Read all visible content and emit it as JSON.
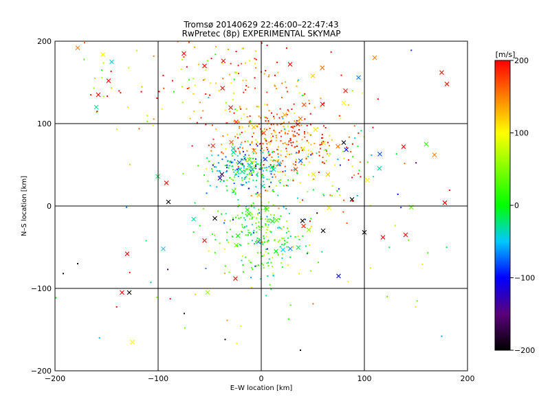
{
  "chart_data": {
    "type": "scatter",
    "title": "Tromsø 20140629 22:46:00–22:47:43",
    "subtitle": "RwPretec (8p) EXPERIMENTAL SKYMAP",
    "xlabel": "E–W location [km]",
    "ylabel": "N–S location [km]",
    "xlim": [
      -200,
      200
    ],
    "ylim": [
      -200,
      200
    ],
    "xticks": [
      -200,
      -100,
      0,
      100,
      200
    ],
    "yticks": [
      -200,
      -100,
      0,
      100,
      200
    ],
    "xtick_labels": [
      "−200",
      "−100",
      "0",
      "100",
      "200"
    ],
    "ytick_labels": [
      "−200",
      "−100",
      "0",
      "100",
      "200"
    ],
    "grid": true,
    "colorbar": {
      "label": "[m/s]",
      "range": [
        -200,
        200
      ],
      "ticks": [
        -200,
        -100,
        0,
        100,
        200
      ],
      "tick_labels": [
        "−200",
        "−100",
        "0",
        "100",
        "200"
      ]
    },
    "markers": {
      "small": "dot",
      "large": "x"
    },
    "clusters": [
      {
        "cx": 20,
        "cy": 80,
        "sx": 30,
        "sy": 25,
        "n": 300,
        "vmean": 160,
        "vsd": 45
      },
      {
        "cx": -15,
        "cy": 45,
        "sx": 18,
        "sy": 12,
        "n": 200,
        "vmean": -40,
        "vsd": 45
      },
      {
        "cx": 0,
        "cy": -30,
        "sx": 22,
        "sy": 28,
        "n": 250,
        "vmean": 15,
        "vsd": 45
      },
      {
        "cx": -90,
        "cy": 150,
        "sx": 60,
        "sy": 35,
        "n": 70,
        "vmean": 140,
        "vsd": 70
      },
      {
        "cx": 0,
        "cy": 150,
        "sx": 35,
        "sy": 30,
        "n": 80,
        "vmean": 140,
        "vsd": 60
      },
      {
        "cx": 60,
        "cy": 40,
        "sx": 35,
        "sy": 30,
        "n": 60,
        "vmean": 60,
        "vsd": 80
      },
      {
        "cx": 0,
        "cy": 0,
        "sx": 100,
        "sy": 100,
        "n": 120,
        "vmean": 40,
        "vsd": 110
      }
    ],
    "sample_points": [
      {
        "x": 110,
        "y": 180,
        "v": 150,
        "marker": "x"
      },
      {
        "x": 175,
        "y": 162,
        "v": 200,
        "marker": "x"
      },
      {
        "x": 180,
        "y": 148,
        "v": 200,
        "marker": "x"
      },
      {
        "x": 178,
        "y": 4,
        "v": 200,
        "marker": "x"
      },
      {
        "x": 168,
        "y": 62,
        "v": 150,
        "marker": "x"
      },
      {
        "x": 160,
        "y": 75,
        "v": 20,
        "marker": "x"
      },
      {
        "x": 115,
        "y": 63,
        "v": -80,
        "marker": "x"
      },
      {
        "x": -135,
        "y": -105,
        "v": 200,
        "marker": "x"
      },
      {
        "x": -128,
        "y": -105,
        "v": -200,
        "marker": "x"
      },
      {
        "x": -130,
        "y": -58,
        "v": 200,
        "marker": "x"
      },
      {
        "x": -125,
        "y": -165,
        "v": 100,
        "marker": "x"
      },
      {
        "x": -52,
        "y": -105,
        "v": 60,
        "marker": "x"
      },
      {
        "x": -90,
        "y": 5,
        "v": -200,
        "marker": "x"
      },
      {
        "x": -92,
        "y": 28,
        "v": 200,
        "marker": "x"
      },
      {
        "x": -160,
        "y": 120,
        "v": -30,
        "marker": "x"
      },
      {
        "x": -158,
        "y": 135,
        "v": 200,
        "marker": "x"
      },
      {
        "x": -148,
        "y": 152,
        "v": 200,
        "marker": "x"
      },
      {
        "x": -145,
        "y": 175,
        "v": -40,
        "marker": "x"
      },
      {
        "x": -178,
        "y": 192,
        "v": 150,
        "marker": "x"
      },
      {
        "x": -55,
        "y": 170,
        "v": 200,
        "marker": "x"
      },
      {
        "x": -75,
        "y": 185,
        "v": 200,
        "marker": "x"
      },
      {
        "x": 28,
        "y": 172,
        "v": 200,
        "marker": "x"
      },
      {
        "x": 50,
        "y": 158,
        "v": 120,
        "marker": "x"
      },
      {
        "x": 80,
        "y": 125,
        "v": 100,
        "marker": "x"
      },
      {
        "x": 100,
        "y": -32,
        "v": -200,
        "marker": "x"
      },
      {
        "x": 118,
        "y": -38,
        "v": 200,
        "marker": "x"
      },
      {
        "x": 140,
        "y": -35,
        "v": 200,
        "marker": "x"
      },
      {
        "x": 138,
        "y": 72,
        "v": 200,
        "marker": "x"
      },
      {
        "x": 80,
        "y": 77,
        "v": -200,
        "marker": "x"
      },
      {
        "x": 88,
        "y": 8,
        "v": -200,
        "marker": "x"
      },
      {
        "x": 60,
        "y": -30,
        "v": -200,
        "marker": "x"
      },
      {
        "x": 40,
        "y": -18,
        "v": -200,
        "marker": "x"
      },
      {
        "x": 75,
        "y": -85,
        "v": -100,
        "marker": "x"
      },
      {
        "x": -25,
        "y": -88,
        "v": 200,
        "marker": "x"
      },
      {
        "x": -45,
        "y": -15,
        "v": -200,
        "marker": "x"
      },
      {
        "x": -95,
        "y": -52,
        "v": -50,
        "marker": "x"
      },
      {
        "x": -55,
        "y": -42,
        "v": 200,
        "marker": "x"
      },
      {
        "x": -178,
        "y": -70,
        "v": -200,
        "marker": "dot"
      },
      {
        "x": -192,
        "y": -82,
        "v": -200,
        "marker": "dot"
      },
      {
        "x": -35,
        "y": -162,
        "v": -200,
        "marker": "dot"
      },
      {
        "x": 38,
        "y": -175,
        "v": -200,
        "marker": "dot"
      },
      {
        "x": 175,
        "y": -158,
        "v": -60,
        "marker": "dot"
      }
    ]
  }
}
